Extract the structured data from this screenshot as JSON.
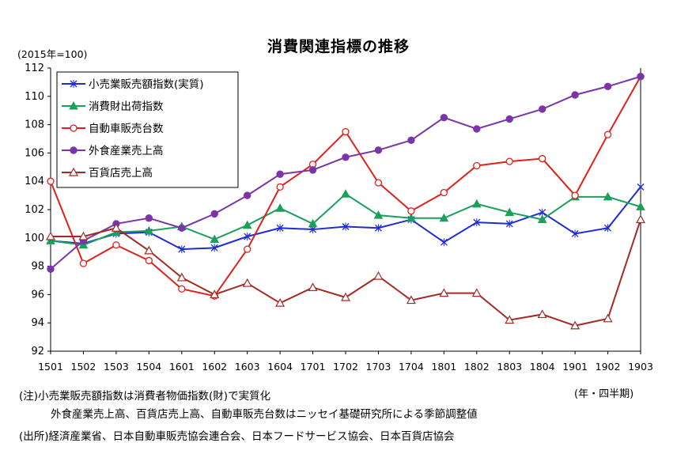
{
  "chart_data": {
    "type": "line",
    "title": "消費関連指標の推移",
    "ylabel": "(2015年=100)",
    "xlabel": "(年・四半期)",
    "ylim": [
      92,
      112
    ],
    "yticks": [
      92,
      94,
      96,
      98,
      100,
      102,
      104,
      106,
      108,
      110,
      112
    ],
    "grid": false,
    "legend_position": "top-left",
    "categories": [
      "1501",
      "1502",
      "1503",
      "1504",
      "1601",
      "1602",
      "1603",
      "1604",
      "1701",
      "1702",
      "1703",
      "1704",
      "1801",
      "1802",
      "1803",
      "1804",
      "1901",
      "1902",
      "1903"
    ],
    "series": [
      {
        "name": "小売業販売額指数(実質)",
        "color": "#1f2bd6",
        "marker": "x",
        "values": [
          99.8,
          99.6,
          100.3,
          100.4,
          99.2,
          99.3,
          100.1,
          100.7,
          100.6,
          100.8,
          100.7,
          101.3,
          99.7,
          101.1,
          101.0,
          101.8,
          100.3,
          100.7,
          103.6
        ]
      },
      {
        "name": "消費財出荷指数",
        "color": "#1aa05a",
        "marker": "triangle-filled",
        "values": [
          99.8,
          99.5,
          100.4,
          100.5,
          100.8,
          99.9,
          100.9,
          102.1,
          101.0,
          103.1,
          101.6,
          101.4,
          101.4,
          102.4,
          101.8,
          101.3,
          102.9,
          102.9,
          102.2
        ]
      },
      {
        "name": "自動車販売台数",
        "color": "#e0201b",
        "marker": "circle-open",
        "values": [
          104.0,
          98.2,
          99.5,
          98.4,
          96.4,
          95.9,
          99.2,
          103.6,
          105.2,
          107.5,
          103.9,
          101.9,
          103.2,
          105.1,
          105.4,
          105.6,
          103.0,
          107.3,
          111.4
        ]
      },
      {
        "name": "外食産業売上高",
        "color": "#7a36a8",
        "marker": "circle-filled",
        "values": [
          97.8,
          99.8,
          101.0,
          101.4,
          100.7,
          101.7,
          103.0,
          104.5,
          104.8,
          105.7,
          106.2,
          106.9,
          108.5,
          107.7,
          108.4,
          109.1,
          110.1,
          110.7,
          111.4
        ]
      },
      {
        "name": "百貨店売上高",
        "color": "#a32a24",
        "marker": "triangle-open",
        "values": [
          100.1,
          100.1,
          100.7,
          99.1,
          97.2,
          96.0,
          96.8,
          95.4,
          96.5,
          95.8,
          97.3,
          95.6,
          96.1,
          96.1,
          94.2,
          94.6,
          93.8,
          94.3,
          101.3
        ]
      }
    ]
  },
  "notes": {
    "line1": "(注)小売業販売額指数は消費者物価指数(財)で実質化",
    "line2": "外食産業売上高、百貨店売上高、自動車販売台数はニッセイ基礎研究所による季節調整値",
    "line3": "(出所)経済産業省、日本自動車販売協会連合会、日本フードサービス協会、日本百貨店協会"
  }
}
